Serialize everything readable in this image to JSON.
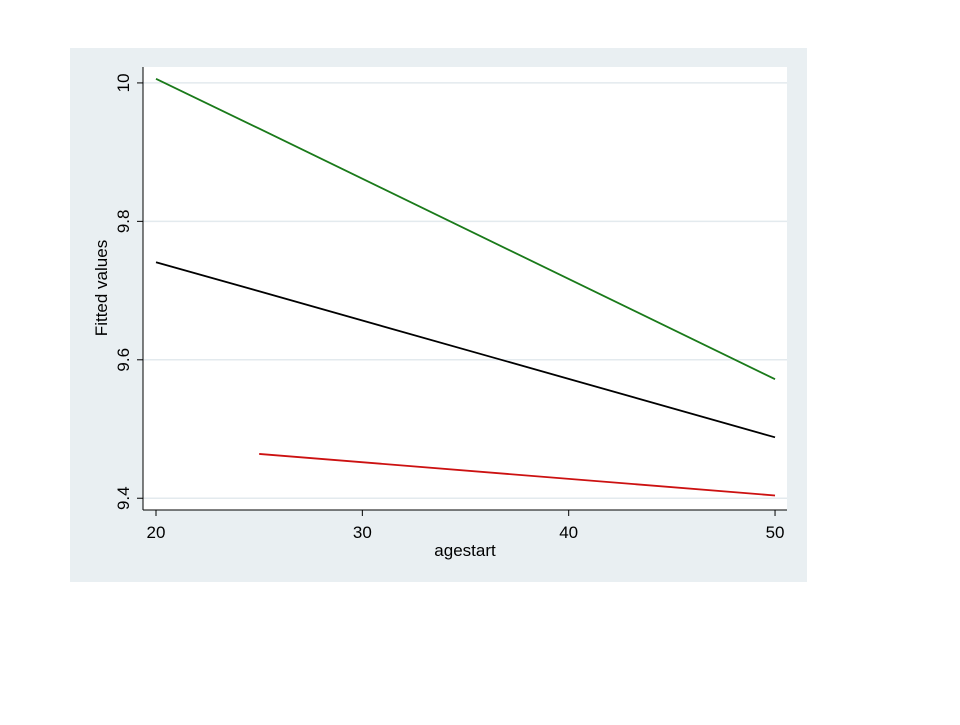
{
  "chart_data": {
    "type": "line",
    "x_label": "agestart",
    "y_label": "Fitted values",
    "x": [
      20,
      25,
      50
    ],
    "series": [
      {
        "color": "#1a7a1a",
        "values": [
          10.006,
          9.934,
          9.572
        ]
      },
      {
        "color": "#000000",
        "values": [
          9.741,
          9.699,
          9.488
        ]
      },
      {
        "color": "#cc1111",
        "values": [
          null,
          9.464,
          9.404
        ]
      }
    ],
    "xlim": [
      19.37,
      50.58
    ],
    "xticks": [
      20,
      30,
      40,
      50
    ],
    "ylim": [
      9.383,
      10.023
    ],
    "yticks": [
      9.4,
      9.6,
      9.8,
      10
    ],
    "grid": true
  }
}
